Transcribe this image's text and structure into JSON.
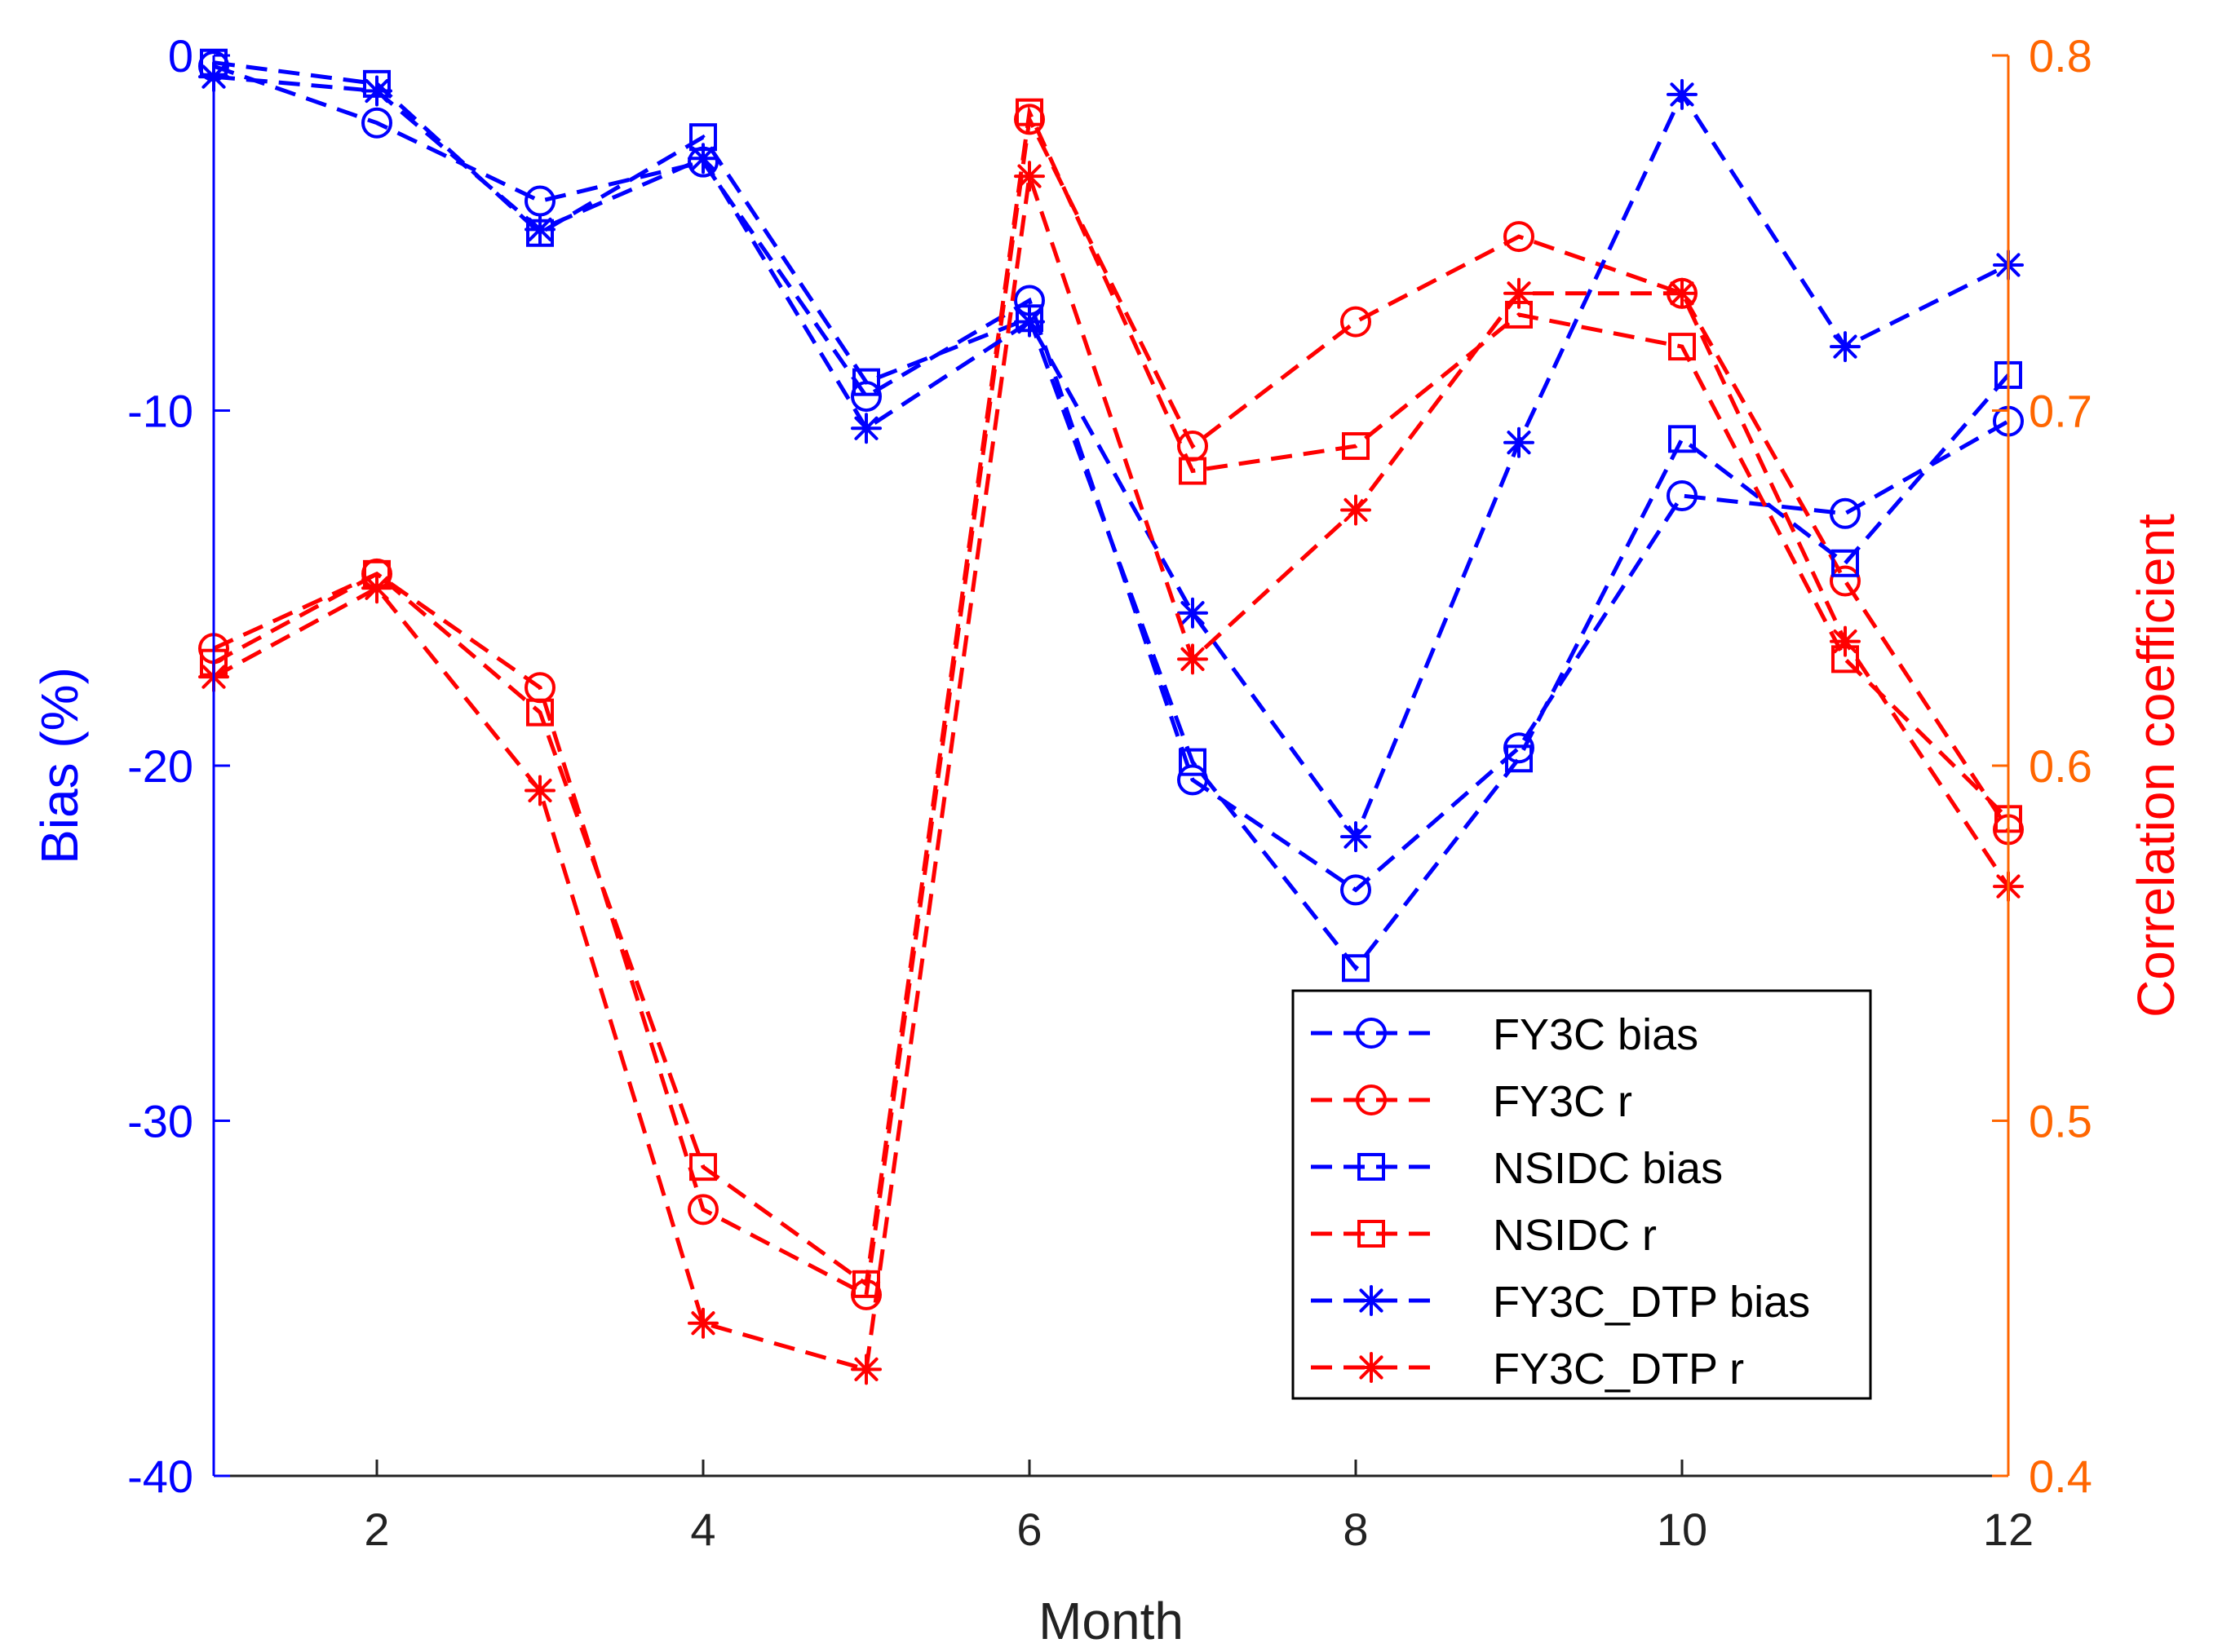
{
  "chart_data": {
    "type": "line",
    "xlabel": "Month",
    "ylabel_left": "Bias (%)",
    "ylabel_right": "Correlation coefficient",
    "xlim": [
      1,
      12
    ],
    "ylim_left": [
      -40,
      0
    ],
    "ylim_right": [
      0.4,
      0.8
    ],
    "x_ticks": [
      2,
      4,
      6,
      8,
      10,
      12
    ],
    "y_left_ticks": [
      0,
      -10,
      -20,
      -30,
      -40
    ],
    "y_right_ticks": [
      0.8,
      0.7,
      0.6,
      0.5,
      0.4
    ],
    "legend_position": "lower-right",
    "x": [
      1,
      2,
      3,
      4,
      5,
      6,
      7,
      8,
      9,
      10,
      11,
      12
    ],
    "series": [
      {
        "name": "FY3C bias",
        "axis": "left",
        "marker": "circle",
        "color": "#0000ff",
        "values": [
          -0.3,
          -1.9,
          -4.1,
          -3.0,
          -9.6,
          -6.9,
          -20.4,
          -23.5,
          -19.5,
          -12.4,
          -12.9,
          -10.3
        ]
      },
      {
        "name": "FY3C r",
        "axis": "right",
        "marker": "circle",
        "color": "#ff0000",
        "values": [
          0.633,
          0.654,
          0.622,
          0.475,
          0.451,
          0.782,
          0.69,
          0.725,
          0.749,
          0.733,
          0.652,
          0.582
        ]
      },
      {
        "name": "NSIDC bias",
        "axis": "left",
        "marker": "square",
        "color": "#0000ff",
        "values": [
          -0.2,
          -0.8,
          -5.0,
          -2.3,
          -9.2,
          -7.4,
          -19.9,
          -25.7,
          -19.8,
          -10.8,
          -14.3,
          -9.0
        ]
      },
      {
        "name": "NSIDC r",
        "axis": "right",
        "marker": "square",
        "color": "#ff0000",
        "values": [
          0.629,
          0.654,
          0.615,
          0.487,
          0.454,
          0.784,
          0.683,
          0.69,
          0.727,
          0.718,
          0.63,
          0.585
        ]
      },
      {
        "name": "FY3C_DTP bias",
        "axis": "left",
        "marker": "asterisk",
        "color": "#0000ff",
        "values": [
          -0.6,
          -1.0,
          -4.9,
          -2.9,
          -10.5,
          -7.5,
          -15.7,
          -22.0,
          -10.9,
          -1.1,
          -8.2,
          -5.9
        ]
      },
      {
        "name": "FY3C_DTP r",
        "axis": "right",
        "marker": "asterisk",
        "color": "#ff0000",
        "values": [
          0.625,
          0.65,
          0.593,
          0.443,
          0.43,
          0.766,
          0.63,
          0.672,
          0.733,
          0.733,
          0.635,
          0.566
        ]
      }
    ]
  },
  "colors": {
    "left_axis": "#0000ff",
    "right_axis": "#ff6600",
    "right_label": "#ff0000",
    "x_axis": "#222222"
  }
}
